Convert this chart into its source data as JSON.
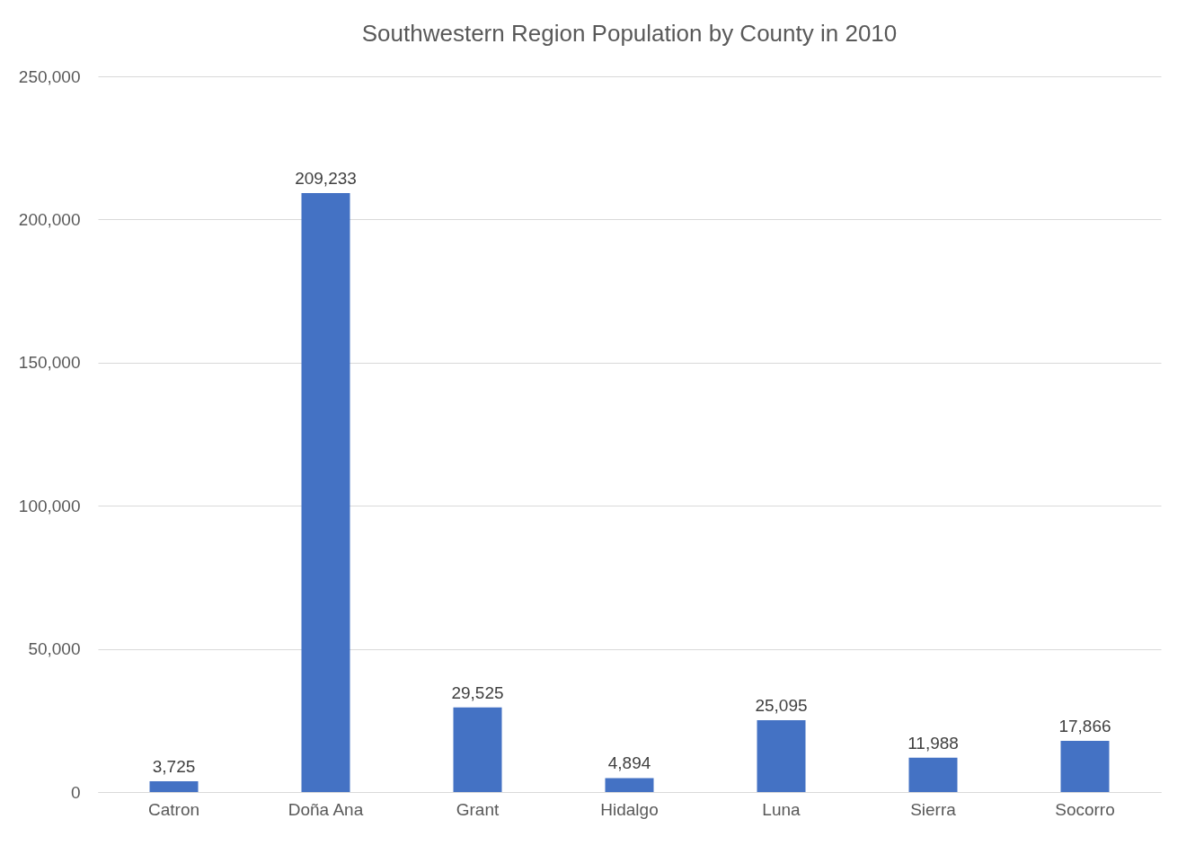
{
  "chart_data": {
    "type": "bar",
    "title": "Southwestern Region Population by County in 2010",
    "categories": [
      "Catron",
      "Doña Ana",
      "Grant",
      "Hidalgo",
      "Luna",
      "Sierra",
      "Socorro"
    ],
    "values": [
      3725,
      209233,
      29525,
      4894,
      25095,
      11988,
      17866
    ],
    "color": "#4472c4",
    "ylim": [
      0,
      250000
    ],
    "yticks": [
      {
        "value": 0,
        "label": "0"
      },
      {
        "value": 50000,
        "label": "50,000"
      },
      {
        "value": 100000,
        "label": "100,000"
      },
      {
        "value": 150000,
        "label": "150,000"
      },
      {
        "value": 200000,
        "label": "200,000"
      },
      {
        "value": 250000,
        "label": "250,000"
      }
    ],
    "value_labels": [
      "3,725",
      "209,233",
      "29,525",
      "4,894",
      "25,095",
      "11,988",
      "17,866"
    ],
    "grid": "y"
  }
}
